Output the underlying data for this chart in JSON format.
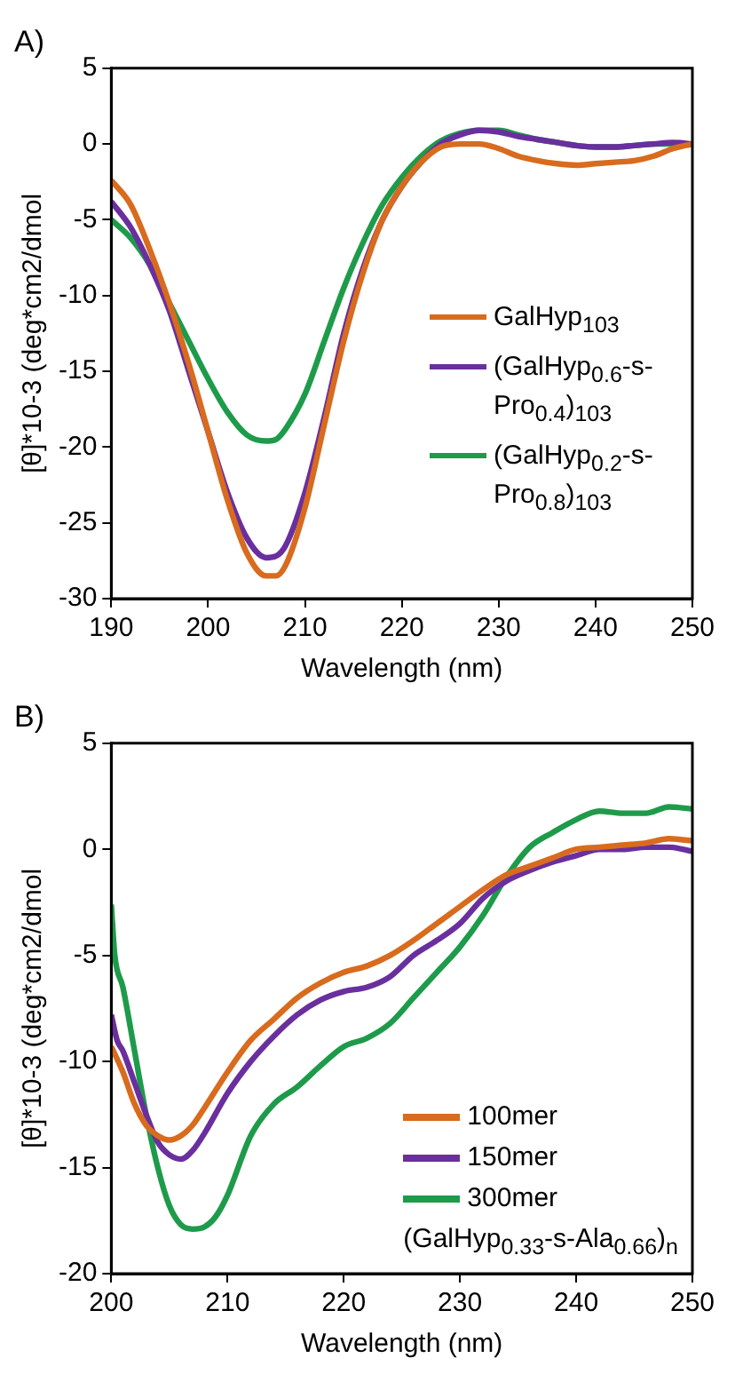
{
  "chart_data": [
    {
      "type": "line",
      "title": "A)",
      "xlabel": "Wavelength (nm)",
      "ylabel": "[θ]*10-3 (deg*cm2/dmol",
      "xlim": [
        190,
        250
      ],
      "xticks": [
        190,
        200,
        210,
        220,
        230,
        240,
        250
      ],
      "ylim": [
        -30,
        5
      ],
      "yticks": [
        -30,
        -25,
        -20,
        -15,
        -10,
        -5,
        0,
        5
      ],
      "grid": false,
      "legend": "right",
      "marker": "none",
      "line_style": "solid",
      "series": [
        {
          "name": "GalHyp$_{103}$",
          "color": "#d86b1e",
          "x": [
            190,
            192,
            194,
            196,
            198,
            200,
            202,
            204,
            206,
            207,
            208,
            210,
            212,
            214,
            216,
            218,
            220,
            222,
            224,
            226,
            228,
            230,
            232,
            234,
            236,
            238,
            240,
            242,
            244,
            246,
            248,
            250
          ],
          "values": [
            -2.4,
            -4,
            -7,
            -10.5,
            -14.5,
            -19,
            -23.5,
            -27,
            -28.5,
            -28.5,
            -27.8,
            -24,
            -18.5,
            -13,
            -8.5,
            -5,
            -2.8,
            -1.2,
            -0.2,
            0,
            0,
            -0.3,
            -0.8,
            -1.1,
            -1.3,
            -1.4,
            -1.3,
            -1.2,
            -1.1,
            -0.8,
            -0.3,
            0
          ]
        },
        {
          "name": "(GalHyp$_{0.6}$-s-Pro$_{0.4}$)$_{103}$",
          "color": "#6a2f9e",
          "x": [
            190,
            192,
            194,
            196,
            198,
            200,
            202,
            204,
            206,
            207,
            208,
            210,
            212,
            214,
            216,
            218,
            220,
            222,
            224,
            226,
            228,
            230,
            232,
            234,
            236,
            238,
            240,
            242,
            244,
            246,
            248,
            250
          ],
          "values": [
            -3.8,
            -5.5,
            -8,
            -11,
            -15,
            -19,
            -23,
            -26,
            -27.3,
            -27.2,
            -26.5,
            -23,
            -18,
            -12.5,
            -8.2,
            -5,
            -2.8,
            -1.2,
            0,
            0.6,
            0.9,
            0.8,
            0.5,
            0.3,
            0.1,
            -0.1,
            -0.2,
            -0.2,
            -0.1,
            0,
            0.1,
            0
          ]
        },
        {
          "name": "(GalHyp$_{0.2}$-s-Pro$_{0.8}$)$_{103}$",
          "color": "#1e9b4a",
          "x": [
            190,
            192,
            194,
            196,
            198,
            200,
            202,
            204,
            206,
            207,
            208,
            210,
            212,
            214,
            216,
            218,
            220,
            222,
            224,
            226,
            228,
            230,
            232,
            234,
            236,
            238,
            240,
            242,
            244,
            246,
            248,
            250
          ],
          "values": [
            -5,
            -6.2,
            -8,
            -10.5,
            -13,
            -15.5,
            -17.7,
            -19.2,
            -19.6,
            -19.5,
            -18.8,
            -16.5,
            -13,
            -9.5,
            -6.5,
            -4,
            -2.2,
            -0.8,
            0.2,
            0.7,
            0.9,
            0.9,
            0.6,
            0.3,
            0.1,
            -0.1,
            -0.2,
            -0.2,
            -0.1,
            0,
            0,
            0
          ]
        }
      ]
    },
    {
      "type": "line",
      "title": "B)",
      "xlabel": "Wavelength (nm)",
      "ylabel": "[θ]*10-3 (deg*cm2/dmol",
      "xlim": [
        200,
        250
      ],
      "xticks": [
        200,
        210,
        220,
        230,
        240,
        250
      ],
      "ylim": [
        -20,
        5
      ],
      "yticks": [
        -20,
        -15,
        -10,
        -5,
        0,
        5
      ],
      "grid": false,
      "legend": "bottom right",
      "marker": "none",
      "line_style": "solid",
      "annotations": [
        "(GalHyp$_{0.33}$-s-Ala$_{0.66}$)$_{n}$"
      ],
      "series": [
        {
          "name": "100mer",
          "color": "#d86b1e",
          "x": [
            200,
            201,
            202,
            203,
            204,
            205,
            206,
            207,
            208,
            210,
            212,
            214,
            216,
            218,
            220,
            222,
            224,
            226,
            228,
            230,
            232,
            234,
            236,
            238,
            240,
            242,
            244,
            246,
            248,
            250
          ],
          "values": [
            -9.3,
            -10.5,
            -12,
            -13,
            -13.5,
            -13.7,
            -13.5,
            -13,
            -12.2,
            -10.5,
            -9,
            -8,
            -7,
            -6.3,
            -5.8,
            -5.5,
            -5,
            -4.3,
            -3.5,
            -2.7,
            -1.9,
            -1.2,
            -0.8,
            -0.4,
            0,
            0.1,
            0.2,
            0.3,
            0.5,
            0.4
          ]
        },
        {
          "name": "150mer",
          "color": "#6a2f9e",
          "x": [
            200,
            200.5,
            201,
            202,
            203,
            204,
            205,
            206,
            207,
            208,
            210,
            212,
            214,
            216,
            218,
            220,
            222,
            224,
            226,
            228,
            230,
            232,
            234,
            236,
            238,
            240,
            242,
            244,
            246,
            248,
            250
          ],
          "values": [
            -7.8,
            -9,
            -9.5,
            -11,
            -12.5,
            -13.8,
            -14.4,
            -14.6,
            -14.2,
            -13.4,
            -11.5,
            -10,
            -8.8,
            -7.8,
            -7.1,
            -6.7,
            -6.5,
            -6,
            -5,
            -4.3,
            -3.5,
            -2.3,
            -1.5,
            -1,
            -0.6,
            -0.3,
            0,
            0,
            0.1,
            0.1,
            -0.1
          ]
        },
        {
          "name": "300mer",
          "color": "#1e9b4a",
          "x": [
            200,
            200.3,
            201,
            202,
            203,
            204,
            205,
            206,
            207,
            208,
            209,
            210,
            212,
            214,
            216,
            218,
            220,
            222,
            224,
            226,
            228,
            230,
            232,
            234,
            236,
            238,
            240,
            242,
            244,
            246,
            248,
            250
          ],
          "values": [
            -2.6,
            -5,
            -6.5,
            -9.5,
            -12.5,
            -15,
            -16.8,
            -17.7,
            -17.9,
            -17.8,
            -17.3,
            -16.3,
            -13.5,
            -12,
            -11.2,
            -10.2,
            -9.3,
            -8.9,
            -8.2,
            -7,
            -5.8,
            -4.6,
            -3.1,
            -1.3,
            0.1,
            0.8,
            1.4,
            1.8,
            1.7,
            1.7,
            2,
            1.9
          ]
        }
      ]
    }
  ]
}
